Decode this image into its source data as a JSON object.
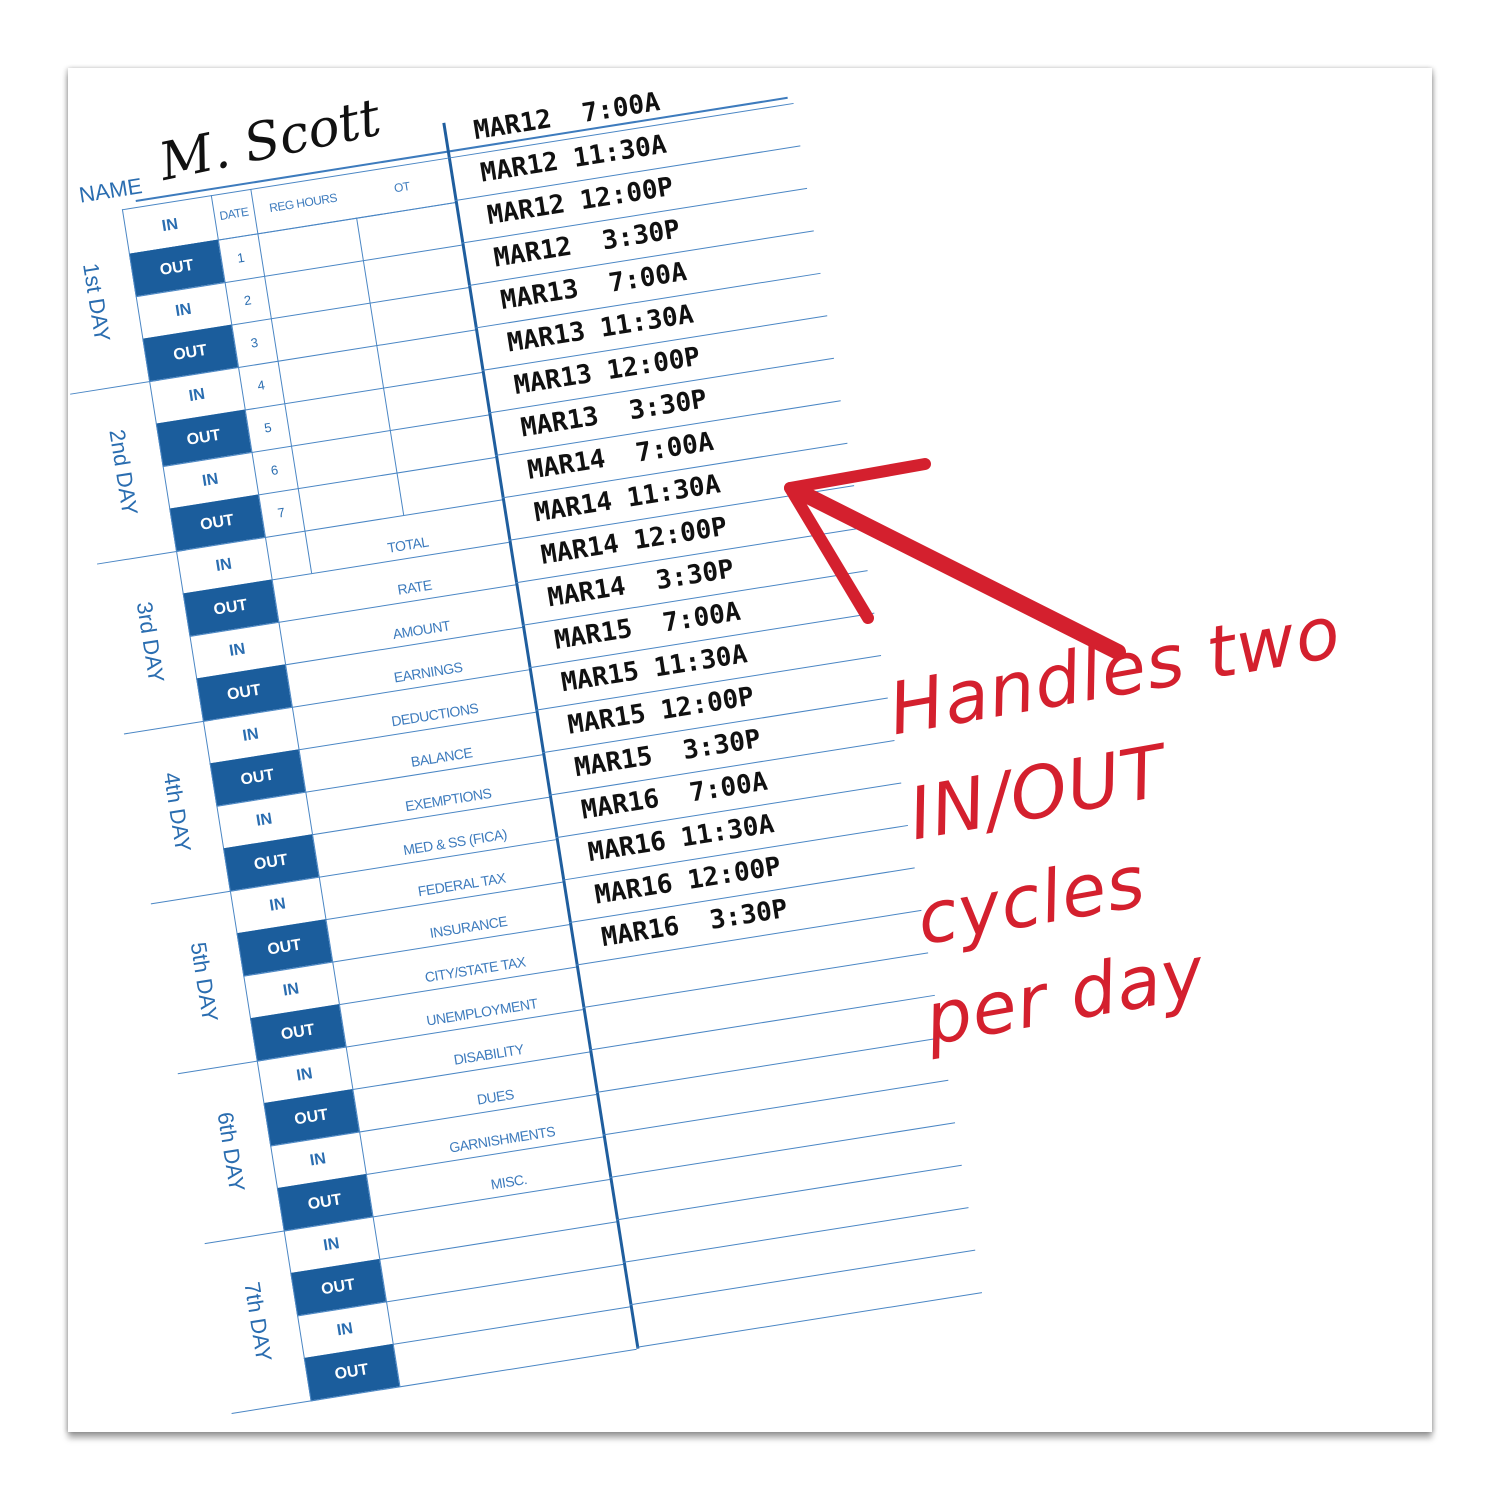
{
  "card": {
    "name_label": "NAME",
    "signature": "M. Scott",
    "headers": {
      "date": "DATE",
      "reg_hours": "REG HOURS",
      "ot": "OT"
    },
    "days": [
      "1st DAY",
      "2nd DAY",
      "3rd DAY",
      "4th DAY",
      "5th DAY",
      "6th DAY",
      "7th DAY"
    ],
    "in_label": "IN",
    "out_label": "OUT",
    "dates": [
      "1",
      "2",
      "3",
      "4",
      "5",
      "6",
      "7"
    ],
    "deductions": [
      "TOTAL",
      "RATE",
      "AMOUNT",
      "EARNINGS",
      "DEDUCTIONS",
      "BALANCE",
      "EXEMPTIONS",
      "MED & SS (FICA)",
      "FEDERAL TAX",
      "INSURANCE",
      "CITY/STATE TAX",
      "UNEMPLOYMENT",
      "DISABILITY",
      "DUES",
      "GARNISHMENTS",
      "MISC."
    ],
    "punches": [
      "MAR12  7:00A",
      "MAR12 11:30A",
      "MAR12 12:00P",
      "MAR12  3:30P",
      "MAR13  7:00A",
      "MAR13 11:30A",
      "MAR13 12:00P",
      "MAR13  3:30P",
      "MAR14  7:00A",
      "MAR14 11:30A",
      "MAR14 12:00P",
      "MAR14  3:30P",
      "MAR15  7:00A",
      "MAR15 11:30A",
      "MAR15 12:00P",
      "MAR15  3:30P",
      "MAR16  7:00A",
      "MAR16 11:30A",
      "MAR16 12:00P",
      "MAR16  3:30P"
    ]
  },
  "annotation": {
    "lines": [
      "Handles two",
      "IN/OUT",
      "cycles",
      "per day"
    ],
    "color": "#d4202e",
    "arrow_icon": "arrow-up-left-icon"
  },
  "colors": {
    "card_blue": "#1b5d9c",
    "line_blue": "#4a86c4"
  }
}
